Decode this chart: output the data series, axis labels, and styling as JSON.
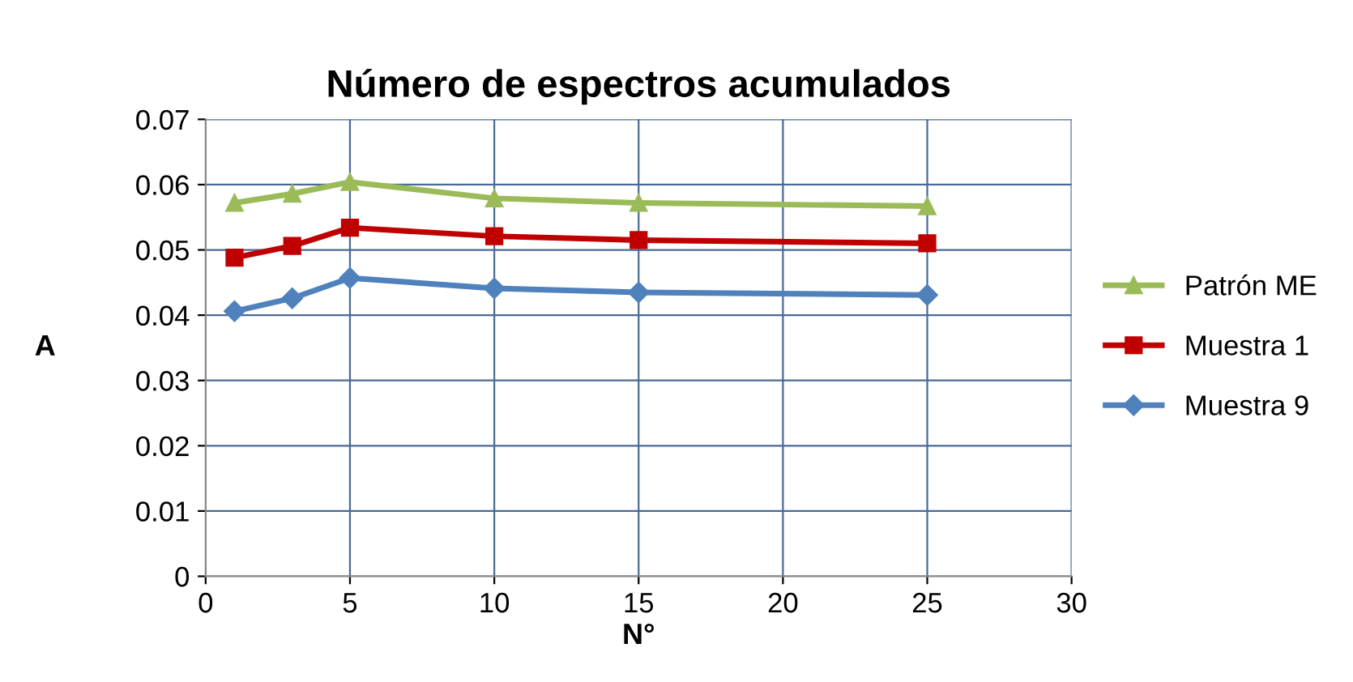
{
  "chart_data": {
    "type": "line",
    "title": "Número de espectros acumulados",
    "xlabel": "N°",
    "ylabel": "A",
    "x": [
      1,
      3,
      5,
      10,
      15,
      25
    ],
    "series": [
      {
        "name": "Patrón ME",
        "color": "#9bbb59",
        "marker": "triangle",
        "values": [
          0.0572,
          0.0586,
          0.0604,
          0.0579,
          0.0572,
          0.0567
        ]
      },
      {
        "name": "Muestra 1",
        "color": "#c00000",
        "marker": "square",
        "values": [
          0.0488,
          0.0506,
          0.0534,
          0.0521,
          0.0515,
          0.051
        ]
      },
      {
        "name": "Muestra 9",
        "color": "#4f81bd",
        "marker": "diamond",
        "values": [
          0.0406,
          0.0426,
          0.0457,
          0.0441,
          0.0435,
          0.0431
        ]
      }
    ],
    "xlim": [
      0,
      30
    ],
    "xticks": [
      0,
      5,
      10,
      15,
      20,
      25,
      30
    ],
    "ylim": [
      0,
      0.07
    ],
    "yticks": [
      0,
      0.01,
      0.02,
      0.03,
      0.04,
      0.05,
      0.06,
      0.07
    ],
    "grid": true,
    "legend": "right",
    "line_style": "solid"
  }
}
